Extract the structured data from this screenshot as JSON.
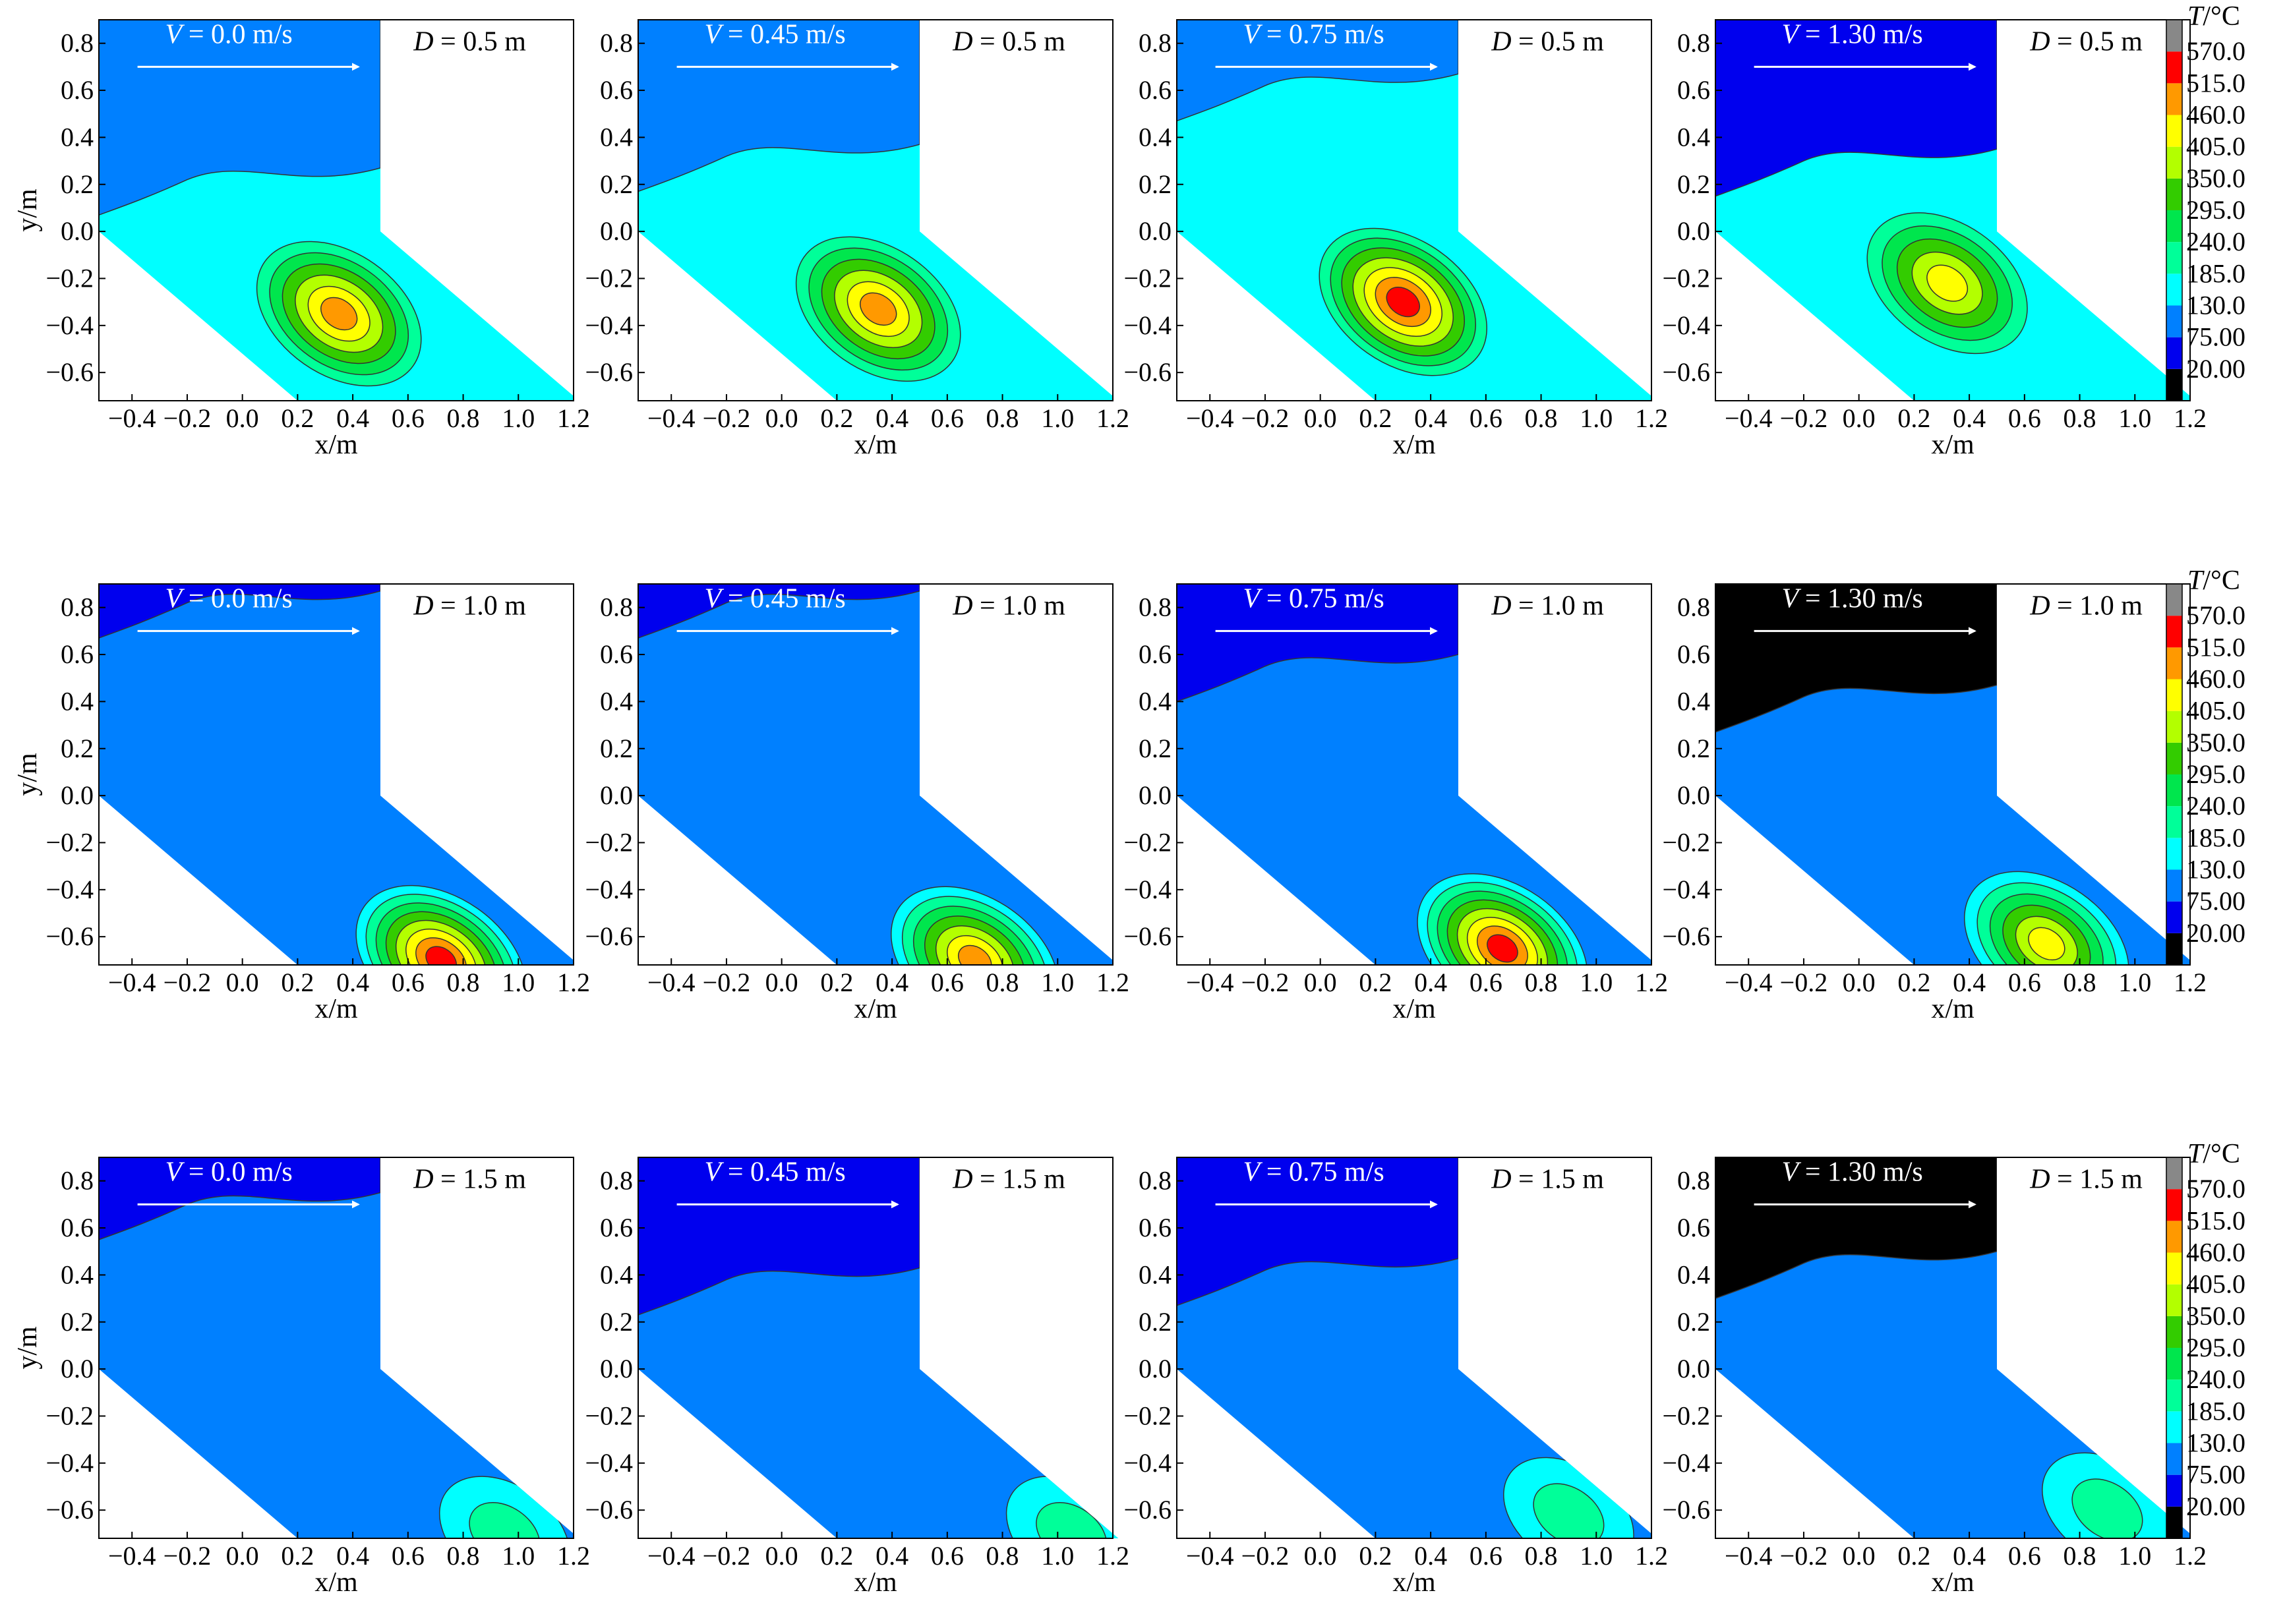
{
  "chart_data": {
    "type": "contour",
    "title": "",
    "xlabel": "x/m",
    "ylabel": "y/m",
    "xlim": [
      -0.52,
      1.2
    ],
    "ylim": [
      -0.72,
      0.9
    ],
    "x_ticks": [
      "−0.4",
      "−0.2",
      "0.0",
      "0.2",
      "0.4",
      "0.6",
      "0.8",
      "1.0",
      "1.2"
    ],
    "y_ticks": [
      "0.8",
      "0.6",
      "0.4",
      "0.2",
      "0.0",
      "−0.2",
      "−0.4",
      "−0.6"
    ],
    "domain_polygon": [
      [
        -0.52,
        0.9
      ],
      [
        0.5,
        0.9
      ],
      [
        0.5,
        0.0
      ],
      [
        1.22,
        -0.72
      ],
      [
        0.2,
        -0.72
      ],
      [
        -0.52,
        0.0
      ]
    ],
    "colorbar": {
      "title_italic": "T",
      "title_rest": "/°C",
      "levels": [
        "570.0",
        "515.0",
        "460.0",
        "405.0",
        "350.0",
        "295.0",
        "240.0",
        "185.0",
        "130.0",
        "75.00",
        "20.00"
      ],
      "colors": [
        "#000000",
        "#0000ee",
        "#0080ff",
        "#00ffff",
        "#00ff99",
        "#00e64d",
        "#33cc00",
        "#b3ff00",
        "#ffff00",
        "#ff9900",
        "#ff0000",
        "#888888"
      ]
    },
    "velocity_prefix": "V",
    "depth_prefix": "D",
    "rows": [
      {
        "depth": "= 0.5 m",
        "panels": [
          {
            "velocity": "= 0.0 m/s",
            "base": "#00ffff",
            "corner": "#0080ff",
            "cornerY": 0.22,
            "hot": {
              "x": 0.35,
              "y": -0.35,
              "peak": 9
            }
          },
          {
            "velocity": "= 0.45 m/s",
            "base": "#00ffff",
            "corner": "#0080ff",
            "cornerY": 0.32,
            "hot": {
              "x": 0.35,
              "y": -0.33,
              "peak": 9
            }
          },
          {
            "velocity": "= 0.75 m/s",
            "base": "#00ffff",
            "corner": "#0080ff",
            "cornerY": 0.62,
            "hot": {
              "x": 0.3,
              "y": -0.3,
              "peak": 10
            }
          },
          {
            "velocity": "= 1.30 m/s",
            "base": "#00ffff",
            "corner": "#0000ee",
            "cornerY": 0.3,
            "hot": {
              "x": 0.32,
              "y": -0.22,
              "peak": 8
            }
          }
        ]
      },
      {
        "depth": "= 1.0 m",
        "panels": [
          {
            "velocity": "= 0.0 m/s",
            "base": "#0080ff",
            "corner": "#0000ee",
            "cornerY": 0.82,
            "hot": {
              "x": 0.72,
              "y": -0.7,
              "peak": 10
            }
          },
          {
            "velocity": "= 0.45 m/s",
            "base": "#0080ff",
            "corner": "#0000ee",
            "cornerY": 0.82,
            "hot": {
              "x": 0.7,
              "y": -0.7,
              "peak": 9
            }
          },
          {
            "velocity": "= 0.75 m/s",
            "base": "#0080ff",
            "corner": "#0000ee",
            "cornerY": 0.55,
            "hot": {
              "x": 0.66,
              "y": -0.65,
              "peak": 10
            }
          },
          {
            "velocity": "= 1.30 m/s",
            "base": "#0080ff",
            "corner": "#000000",
            "cornerY": 0.42,
            "hot": {
              "x": 0.68,
              "y": -0.63,
              "peak": 8
            }
          }
        ]
      },
      {
        "depth": "= 1.5 m",
        "panels": [
          {
            "velocity": "= 0.0 m/s",
            "base": "#0080ff",
            "corner": "#0000ee",
            "cornerY": 0.7,
            "hot": {
              "x": 0.95,
              "y": -0.7,
              "peak": 4
            }
          },
          {
            "velocity": "= 0.45 m/s",
            "base": "#0080ff",
            "corner": "#0000ee",
            "cornerY": 0.38,
            "hot": {
              "x": 1.05,
              "y": -0.7,
              "peak": 4
            }
          },
          {
            "velocity": "= 0.75 m/s",
            "base": "#0080ff",
            "corner": "#0000ee",
            "cornerY": 0.42,
            "hot": {
              "x": 0.9,
              "y": -0.62,
              "peak": 4
            }
          },
          {
            "velocity": "= 1.30 m/s",
            "base": "#0080ff",
            "corner": "#000000",
            "cornerY": 0.45,
            "hot": {
              "x": 0.9,
              "y": -0.6,
              "peak": 4
            }
          }
        ]
      }
    ]
  }
}
